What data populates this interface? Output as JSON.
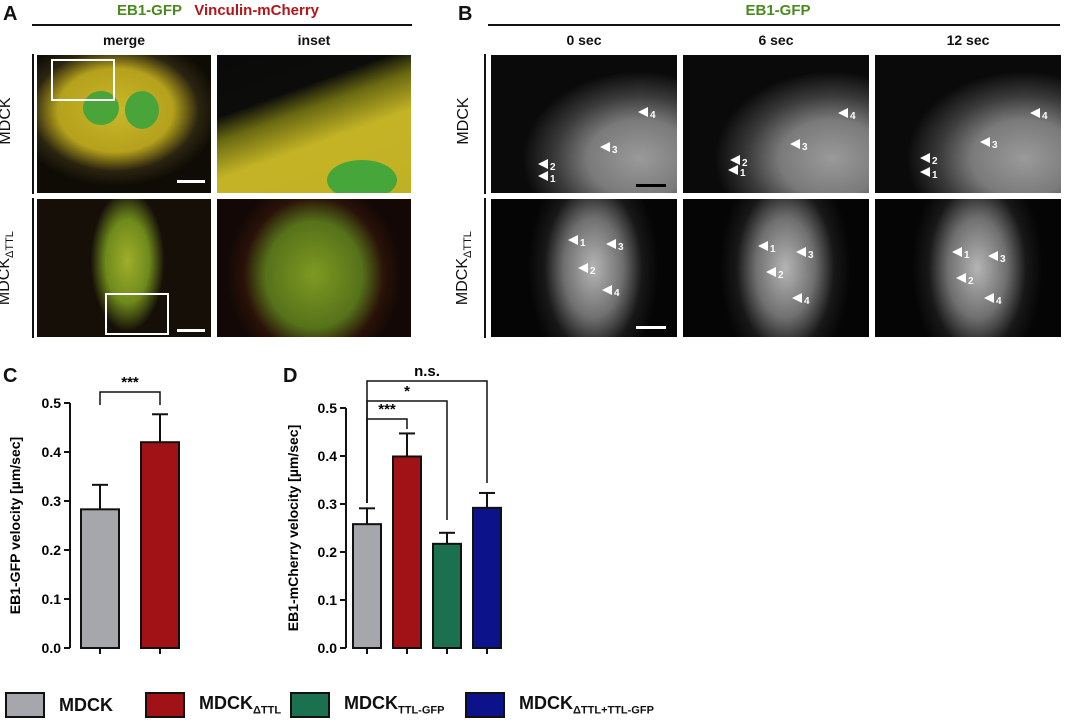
{
  "panels": {
    "A": {
      "label": "A",
      "title_green": "EB1-GFP",
      "title_red": "Vinculin-mCherry",
      "col_merge": "merge",
      "col_inset": "inset",
      "row1": "MDCK",
      "row2_main": "MDCK",
      "row2_sub": "ΔTTL"
    },
    "B": {
      "label": "B",
      "title": "EB1-GFP",
      "times": [
        "0 sec",
        "6 sec",
        "12 sec"
      ],
      "row1": "MDCK",
      "row2_main": "MDCK",
      "row2_sub": "ΔTTL",
      "arrow_labels": [
        "1",
        "2",
        "3",
        "4"
      ]
    },
    "C": {
      "label": "C",
      "sig": "***"
    },
    "D": {
      "label": "D",
      "sig_ns": "n.s.",
      "sig_1": "***",
      "sig_2": "*"
    }
  },
  "colors": {
    "MDCK": "#a6a6ad",
    "MDCK_dTTL": "#a11217",
    "MDCK_TTL_GFP": "#1b7050",
    "MDCK_dTTL_TTL_GFP": "#0b128a",
    "title_green": "#4b8a1e",
    "title_red": "#b3151a"
  },
  "legend": [
    {
      "main": "MDCK",
      "sub": "",
      "color": "#a6a6ad"
    },
    {
      "main": "MDCK",
      "sub": "ΔTTL",
      "color": "#a11217"
    },
    {
      "main": "MDCK",
      "sub": "TTL-GFP",
      "color": "#1b7050"
    },
    {
      "main": "MDCK",
      "sub": "ΔTTL+TTL-GFP",
      "color": "#0b128a"
    }
  ],
  "chart_data": [
    {
      "type": "bar",
      "panel": "C",
      "ylabel": "EB1-GFP velocity [µm/sec]",
      "ylim": [
        0,
        0.5
      ],
      "yticks": [
        "0.0",
        "0.1",
        "0.2",
        "0.3",
        "0.4",
        "0.5"
      ],
      "categories": [
        "MDCK",
        "MDCK ΔTTL"
      ],
      "values": [
        0.283,
        0.42
      ],
      "errors": [
        0.05,
        0.057
      ],
      "colors": [
        "#a6a6ad",
        "#a11217"
      ]
    },
    {
      "type": "bar",
      "panel": "D",
      "ylabel": "EB1-mCherry velocity [µm/sec]",
      "ylim": [
        0,
        0.5
      ],
      "yticks": [
        "0.0",
        "0.1",
        "0.2",
        "0.3",
        "0.4",
        "0.5"
      ],
      "categories": [
        "MDCK",
        "MDCK ΔTTL",
        "MDCK TTL-GFP",
        "MDCK ΔTTL+TTL-GFP"
      ],
      "values": [
        0.258,
        0.399,
        0.217,
        0.292
      ],
      "errors": [
        0.033,
        0.048,
        0.023,
        0.031
      ],
      "colors": [
        "#a6a6ad",
        "#a11217",
        "#1b7050",
        "#0b128a"
      ]
    }
  ]
}
